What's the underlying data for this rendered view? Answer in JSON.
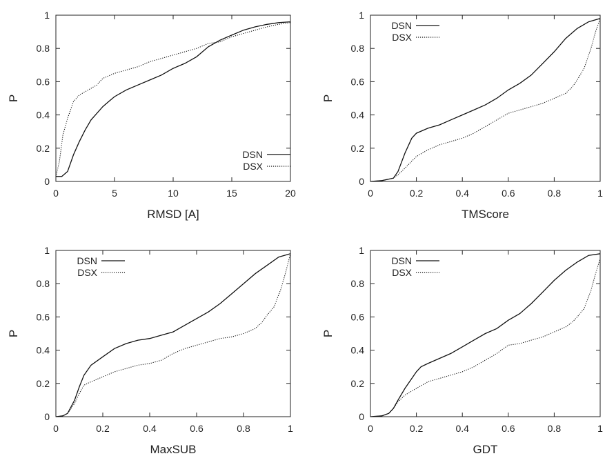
{
  "chart_data": [
    {
      "type": "line",
      "xlabel": "RMSD [A]",
      "ylabel": "P",
      "xlim": [
        0,
        20
      ],
      "ylim": [
        0,
        1
      ],
      "xticks": [
        "0",
        "5",
        "10",
        "15",
        "20"
      ],
      "yticks": [
        "0",
        "0.2",
        "0.4",
        "0.6",
        "0.8",
        "1"
      ],
      "legend_position": "bottom-right",
      "series": [
        {
          "name": "DSN",
          "style": "solid",
          "points": [
            [
              0,
              0.03
            ],
            [
              0.5,
              0.03
            ],
            [
              1,
              0.06
            ],
            [
              1.5,
              0.16
            ],
            [
              2,
              0.24
            ],
            [
              2.5,
              0.31
            ],
            [
              3,
              0.37
            ],
            [
              3.5,
              0.41
            ],
            [
              4,
              0.45
            ],
            [
              4.5,
              0.48
            ],
            [
              5,
              0.51
            ],
            [
              6,
              0.55
            ],
            [
              7,
              0.58
            ],
            [
              8,
              0.61
            ],
            [
              9,
              0.64
            ],
            [
              10,
              0.68
            ],
            [
              11,
              0.71
            ],
            [
              12,
              0.75
            ],
            [
              13,
              0.81
            ],
            [
              14,
              0.85
            ],
            [
              15,
              0.88
            ],
            [
              16,
              0.91
            ],
            [
              17,
              0.93
            ],
            [
              18,
              0.945
            ],
            [
              19,
              0.955
            ],
            [
              20,
              0.96
            ]
          ]
        },
        {
          "name": "DSX",
          "style": "dotted",
          "points": [
            [
              0,
              0.03
            ],
            [
              0.3,
              0.12
            ],
            [
              0.6,
              0.28
            ],
            [
              1,
              0.38
            ],
            [
              1.5,
              0.48
            ],
            [
              2,
              0.52
            ],
            [
              3,
              0.56
            ],
            [
              3.5,
              0.58
            ],
            [
              4,
              0.62
            ],
            [
              5,
              0.65
            ],
            [
              6,
              0.67
            ],
            [
              7,
              0.69
            ],
            [
              8,
              0.72
            ],
            [
              9,
              0.74
            ],
            [
              10,
              0.76
            ],
            [
              11,
              0.78
            ],
            [
              12,
              0.8
            ],
            [
              13,
              0.83
            ],
            [
              14,
              0.84
            ],
            [
              15,
              0.87
            ],
            [
              16,
              0.89
            ],
            [
              17,
              0.91
            ],
            [
              18,
              0.93
            ],
            [
              19,
              0.945
            ],
            [
              20,
              0.955
            ]
          ]
        }
      ]
    },
    {
      "type": "line",
      "xlabel": "TMScore",
      "ylabel": "P",
      "xlim": [
        0,
        1
      ],
      "ylim": [
        0,
        1
      ],
      "xticks": [
        "0",
        "0.2",
        "0.4",
        "0.6",
        "0.8",
        "1"
      ],
      "yticks": [
        "0",
        "0.2",
        "0.4",
        "0.6",
        "0.8",
        "1"
      ],
      "legend_position": "top-left",
      "series": [
        {
          "name": "DSN",
          "style": "solid",
          "points": [
            [
              0,
              0
            ],
            [
              0.05,
              0.005
            ],
            [
              0.1,
              0.02
            ],
            [
              0.12,
              0.06
            ],
            [
              0.15,
              0.17
            ],
            [
              0.18,
              0.26
            ],
            [
              0.2,
              0.29
            ],
            [
              0.25,
              0.32
            ],
            [
              0.3,
              0.34
            ],
            [
              0.35,
              0.37
            ],
            [
              0.4,
              0.4
            ],
            [
              0.45,
              0.43
            ],
            [
              0.5,
              0.46
            ],
            [
              0.55,
              0.5
            ],
            [
              0.6,
              0.55
            ],
            [
              0.65,
              0.59
            ],
            [
              0.7,
              0.64
            ],
            [
              0.75,
              0.71
            ],
            [
              0.8,
              0.78
            ],
            [
              0.85,
              0.86
            ],
            [
              0.9,
              0.92
            ],
            [
              0.95,
              0.96
            ],
            [
              1,
              0.98
            ]
          ]
        },
        {
          "name": "DSX",
          "style": "dotted",
          "points": [
            [
              0,
              0
            ],
            [
              0.05,
              0.005
            ],
            [
              0.1,
              0.02
            ],
            [
              0.12,
              0.04
            ],
            [
              0.15,
              0.08
            ],
            [
              0.2,
              0.15
            ],
            [
              0.25,
              0.19
            ],
            [
              0.3,
              0.22
            ],
            [
              0.35,
              0.24
            ],
            [
              0.4,
              0.26
            ],
            [
              0.45,
              0.29
            ],
            [
              0.5,
              0.33
            ],
            [
              0.55,
              0.37
            ],
            [
              0.6,
              0.41
            ],
            [
              0.65,
              0.43
            ],
            [
              0.7,
              0.45
            ],
            [
              0.75,
              0.47
            ],
            [
              0.8,
              0.5
            ],
            [
              0.85,
              0.53
            ],
            [
              0.88,
              0.57
            ],
            [
              0.9,
              0.61
            ],
            [
              0.93,
              0.68
            ],
            [
              0.96,
              0.8
            ],
            [
              0.98,
              0.9
            ],
            [
              1,
              0.98
            ]
          ]
        }
      ]
    },
    {
      "type": "line",
      "xlabel": "MaxSUB",
      "ylabel": "P",
      "xlim": [
        0,
        1
      ],
      "ylim": [
        0,
        1
      ],
      "xticks": [
        "0",
        "0.2",
        "0.4",
        "0.6",
        "0.8",
        "1"
      ],
      "yticks": [
        "0",
        "0.2",
        "0.4",
        "0.6",
        "0.8",
        "1"
      ],
      "legend_position": "top-left",
      "series": [
        {
          "name": "DSN",
          "style": "solid",
          "points": [
            [
              0,
              0
            ],
            [
              0.03,
              0.005
            ],
            [
              0.05,
              0.02
            ],
            [
              0.08,
              0.1
            ],
            [
              0.1,
              0.18
            ],
            [
              0.12,
              0.25
            ],
            [
              0.15,
              0.31
            ],
            [
              0.2,
              0.36
            ],
            [
              0.25,
              0.41
            ],
            [
              0.3,
              0.44
            ],
            [
              0.35,
              0.46
            ],
            [
              0.4,
              0.47
            ],
            [
              0.45,
              0.49
            ],
            [
              0.5,
              0.51
            ],
            [
              0.55,
              0.55
            ],
            [
              0.6,
              0.59
            ],
            [
              0.65,
              0.63
            ],
            [
              0.7,
              0.68
            ],
            [
              0.75,
              0.74
            ],
            [
              0.8,
              0.8
            ],
            [
              0.85,
              0.86
            ],
            [
              0.9,
              0.91
            ],
            [
              0.95,
              0.96
            ],
            [
              1,
              0.98
            ]
          ]
        },
        {
          "name": "DSX",
          "style": "dotted",
          "points": [
            [
              0,
              0
            ],
            [
              0.03,
              0.005
            ],
            [
              0.05,
              0.02
            ],
            [
              0.08,
              0.08
            ],
            [
              0.1,
              0.14
            ],
            [
              0.12,
              0.19
            ],
            [
              0.15,
              0.21
            ],
            [
              0.2,
              0.24
            ],
            [
              0.25,
              0.27
            ],
            [
              0.3,
              0.29
            ],
            [
              0.35,
              0.31
            ],
            [
              0.4,
              0.32
            ],
            [
              0.45,
              0.34
            ],
            [
              0.5,
              0.38
            ],
            [
              0.55,
              0.41
            ],
            [
              0.6,
              0.43
            ],
            [
              0.65,
              0.45
            ],
            [
              0.7,
              0.47
            ],
            [
              0.75,
              0.48
            ],
            [
              0.8,
              0.5
            ],
            [
              0.85,
              0.53
            ],
            [
              0.88,
              0.57
            ],
            [
              0.9,
              0.61
            ],
            [
              0.93,
              0.66
            ],
            [
              0.96,
              0.77
            ],
            [
              0.98,
              0.87
            ],
            [
              1,
              0.98
            ]
          ]
        }
      ]
    },
    {
      "type": "line",
      "xlabel": "GDT",
      "ylabel": "P",
      "xlim": [
        0,
        1
      ],
      "ylim": [
        0,
        1
      ],
      "xticks": [
        "0",
        "0.2",
        "0.4",
        "0.6",
        "0.8",
        "1"
      ],
      "yticks": [
        "0",
        "0.2",
        "0.4",
        "0.6",
        "0.8",
        "1"
      ],
      "legend_position": "top-left",
      "series": [
        {
          "name": "DSN",
          "style": "solid",
          "points": [
            [
              0,
              0
            ],
            [
              0.05,
              0.005
            ],
            [
              0.08,
              0.02
            ],
            [
              0.1,
              0.05
            ],
            [
              0.12,
              0.1
            ],
            [
              0.15,
              0.17
            ],
            [
              0.2,
              0.27
            ],
            [
              0.22,
              0.3
            ],
            [
              0.25,
              0.32
            ],
            [
              0.3,
              0.35
            ],
            [
              0.35,
              0.38
            ],
            [
              0.4,
              0.42
            ],
            [
              0.45,
              0.46
            ],
            [
              0.5,
              0.5
            ],
            [
              0.55,
              0.53
            ],
            [
              0.6,
              0.58
            ],
            [
              0.65,
              0.62
            ],
            [
              0.7,
              0.68
            ],
            [
              0.75,
              0.75
            ],
            [
              0.8,
              0.82
            ],
            [
              0.85,
              0.88
            ],
            [
              0.9,
              0.93
            ],
            [
              0.95,
              0.97
            ],
            [
              1,
              0.98
            ]
          ]
        },
        {
          "name": "DSX",
          "style": "dotted",
          "points": [
            [
              0,
              0
            ],
            [
              0.05,
              0.005
            ],
            [
              0.08,
              0.02
            ],
            [
              0.1,
              0.05
            ],
            [
              0.12,
              0.09
            ],
            [
              0.15,
              0.13
            ],
            [
              0.2,
              0.17
            ],
            [
              0.25,
              0.21
            ],
            [
              0.3,
              0.23
            ],
            [
              0.35,
              0.25
            ],
            [
              0.4,
              0.27
            ],
            [
              0.45,
              0.3
            ],
            [
              0.5,
              0.34
            ],
            [
              0.55,
              0.38
            ],
            [
              0.6,
              0.43
            ],
            [
              0.65,
              0.44
            ],
            [
              0.7,
              0.46
            ],
            [
              0.75,
              0.48
            ],
            [
              0.8,
              0.51
            ],
            [
              0.85,
              0.54
            ],
            [
              0.88,
              0.57
            ],
            [
              0.9,
              0.6
            ],
            [
              0.93,
              0.65
            ],
            [
              0.96,
              0.76
            ],
            [
              0.98,
              0.86
            ],
            [
              1,
              0.95
            ]
          ]
        }
      ]
    }
  ]
}
